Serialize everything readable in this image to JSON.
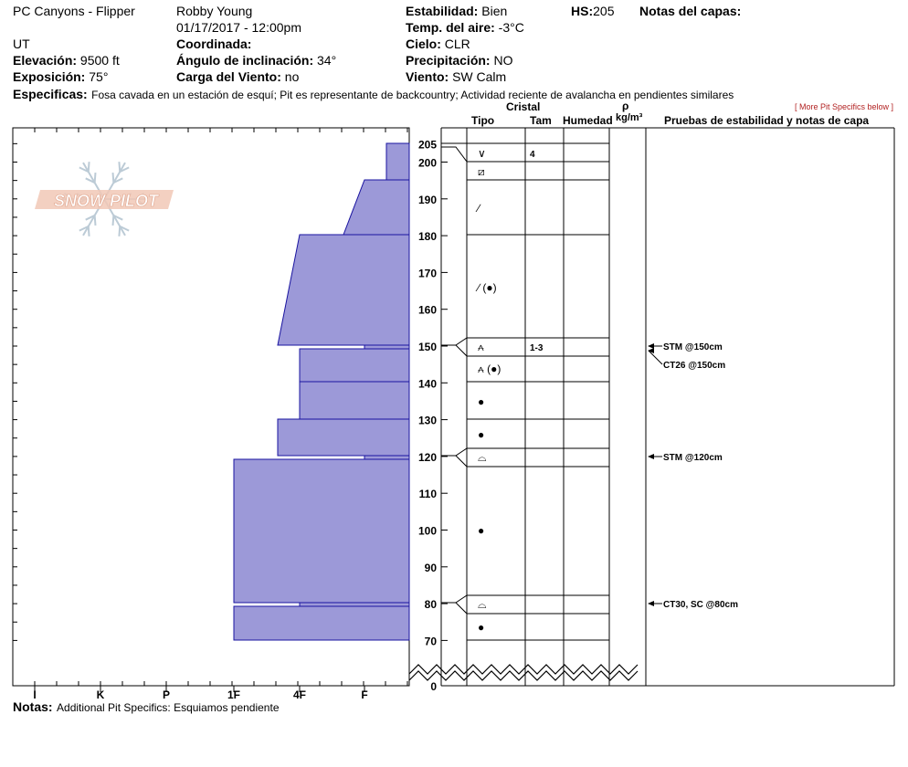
{
  "header": {
    "location": "PC Canyons - Flipper",
    "state": "UT",
    "elevation_label": "Elevación:",
    "elevation_value": "9500 ft",
    "exposure_label": "Exposición:",
    "exposure_value": "75°",
    "observer": "Robby Young",
    "datetime": "01/17/2017 - 12:00pm",
    "coord_label": "Coordinada:",
    "coord_value": "",
    "incline_label": "Ángulo de inclinación:",
    "incline_value": "34°",
    "wind_load_label": "Carga del Viento:",
    "wind_load_value": "no",
    "stability_label": "Estabilidad:",
    "stability_value": "Bien",
    "air_temp_label": "Temp. del aire:",
    "air_temp_value": "-3°C",
    "sky_label": "Cielo:",
    "sky_value": "CLR",
    "precip_label": "Precipitación:",
    "precip_value": "NO",
    "wind_label": "Viento:",
    "wind_value": "SW Calm",
    "hs_label": "HS:",
    "hs_value": "205",
    "layer_notes_label": "Notas del capas:",
    "specifics_label": "Especificas:",
    "specifics_value": "Fosa cavada en un estación de esquí; Pit es representante de backcountry; Actividad reciente de avalancha en pendientes similares",
    "more_link": "[ More Pit Specifics below ]"
  },
  "logo_text": "SNOW PILOT",
  "columns": {
    "crystal": "Cristal",
    "type": "Tipo",
    "size": "Tam",
    "moisture": "Humedad",
    "rho": "ρ",
    "density_unit": "kg/m³",
    "tests": "Pruebas de estabilidad y notas de capa"
  },
  "hardness_axis": [
    "I",
    "K",
    "P",
    "1F",
    "4F",
    "F"
  ],
  "depth_axis": [
    "205",
    "200",
    "190",
    "180",
    "170",
    "160",
    "150",
    "140",
    "130",
    "120",
    "110",
    "100",
    "90",
    "80",
    "70",
    "0"
  ],
  "layers": [
    {
      "type": "∨",
      "size": "4"
    },
    {
      "type": "⧄",
      "size": ""
    },
    {
      "type": "∕",
      "size": ""
    },
    {
      "type": "∕ (●)",
      "size": ""
    },
    {
      "type": "⩜",
      "size": "1-3"
    },
    {
      "type": "⩜ (●)",
      "size": ""
    },
    {
      "type": "●",
      "size": ""
    },
    {
      "type": "●",
      "size": ""
    },
    {
      "type": "⌓",
      "size": ""
    },
    {
      "type": "●",
      "size": ""
    },
    {
      "type": "⌓",
      "size": ""
    },
    {
      "type": "●",
      "size": ""
    }
  ],
  "tests": [
    {
      "label": "STM @150cm"
    },
    {
      "label": "CT26 @150cm"
    },
    {
      "label": "STM @120cm"
    },
    {
      "label": "CT30, SC @80cm"
    }
  ],
  "notes": {
    "label": "Notas:",
    "value": "Additional Pit Specifics: Esquiamos pendiente"
  },
  "colors": {
    "layer_fill": "#9c99d8",
    "layer_stroke": "#1a14a0",
    "link_red": "#b22222"
  }
}
